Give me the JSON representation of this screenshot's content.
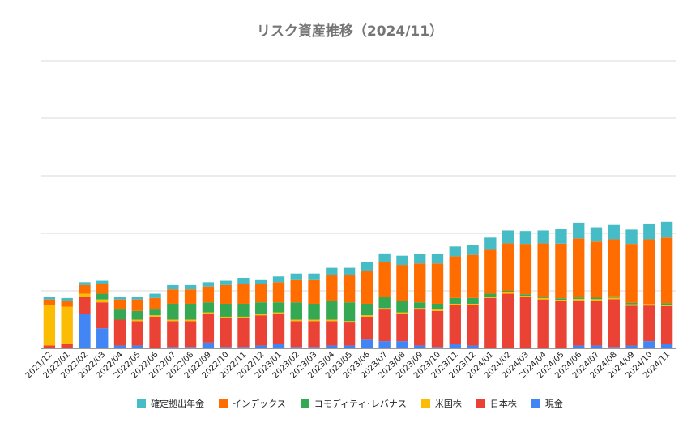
{
  "chart_data": {
    "type": "bar",
    "stacked": true,
    "title": "リスク資産推移（2024/11）",
    "xlabel": "",
    "ylabel": "",
    "y_tick_labels_shown": false,
    "ylim": [
      0,
      10
    ],
    "grid": true,
    "legend_position": "bottom",
    "categories": [
      "2021/12",
      "2022/01",
      "2022/02",
      "2022/03",
      "2022/04",
      "2022/05",
      "2022/06",
      "2022/07",
      "2022/08",
      "2022/09",
      "2022/10",
      "2022/11",
      "2022/12",
      "2023/01",
      "2023/02",
      "2023/03",
      "2023/04",
      "2023/05",
      "2023/06",
      "2023/07",
      "2023/08",
      "2023/09",
      "2023/10",
      "2023/11",
      "2023/12",
      "2024/01",
      "2024/02",
      "2024/03",
      "2024/04",
      "2024/05",
      "2024/06",
      "2024/07",
      "2024/08",
      "2024/09",
      "2024/10",
      "2024/11"
    ],
    "series": [
      {
        "name": "現金",
        "color": "#4285f4",
        "values": [
          0,
          0,
          1.2,
          0.7,
          0.1,
          0.1,
          0,
          0.05,
          0.05,
          0.2,
          0.05,
          0.05,
          0.1,
          0.15,
          0.05,
          0.05,
          0.1,
          0.1,
          0.3,
          0.25,
          0.25,
          0.1,
          0.05,
          0.15,
          0.1,
          0,
          0,
          0,
          0,
          0,
          0.1,
          0.1,
          0.05,
          0.1,
          0.25,
          0.15
        ]
      },
      {
        "name": "日本株",
        "color": "#ea4335",
        "values": [
          0.1,
          0.15,
          0.6,
          0.9,
          0.9,
          0.85,
          1.1,
          0.9,
          0.9,
          1,
          1,
          1,
          1.05,
          1.05,
          0.9,
          0.9,
          0.85,
          0.8,
          0.8,
          1.1,
          0.95,
          1.25,
          1.25,
          1.35,
          1.4,
          1.75,
          1.9,
          1.78,
          1.7,
          1.64,
          1.57,
          1.56,
          1.66,
          1.38,
          1.24,
          1.32
        ]
      },
      {
        "name": "米国株",
        "color": "#fbbc04",
        "values": [
          1.4,
          1.3,
          0.1,
          0.1,
          0,
          0.05,
          0.05,
          0.05,
          0.05,
          0.05,
          0.05,
          0.05,
          0.05,
          0.05,
          0.05,
          0.05,
          0.05,
          0.05,
          0.05,
          0.05,
          0.05,
          0.05,
          0.05,
          0.05,
          0.05,
          0.05,
          0.05,
          0.05,
          0.05,
          0.05,
          0.05,
          0.05,
          0.05,
          0.05,
          0.05,
          0.05
        ]
      },
      {
        "name": "コモディティ･レバナス",
        "color": "#34a853",
        "values": [
          0,
          0,
          0,
          0.2,
          0.35,
          0.3,
          0.2,
          0.55,
          0.55,
          0.35,
          0.45,
          0.45,
          0.4,
          0.35,
          0.6,
          0.55,
          0.65,
          0.65,
          0.4,
          0.4,
          0.4,
          0.2,
          0.2,
          0.2,
          0.2,
          0.1,
          0.05,
          0.05,
          0.05,
          0.05,
          0.05,
          0.05,
          0.05,
          0.05,
          0,
          0.05
        ]
      },
      {
        "name": "インデックス",
        "color": "#ff6d01",
        "values": [
          0.2,
          0.2,
          0.3,
          0.35,
          0.35,
          0.4,
          0.4,
          0.5,
          0.5,
          0.55,
          0.65,
          0.7,
          0.65,
          0.7,
          0.8,
          0.85,
          0.9,
          0.95,
          1.15,
          1.2,
          1.25,
          1.35,
          1.4,
          1.45,
          1.5,
          1.55,
          1.65,
          1.75,
          1.85,
          1.9,
          2.05,
          1.95,
          1.98,
          2.05,
          2.25,
          2.28
        ]
      },
      {
        "name": "確定拠出年金",
        "color": "#46bdc6",
        "values": [
          0.1,
          0.1,
          0.1,
          0.1,
          0.1,
          0.1,
          0.15,
          0.15,
          0.15,
          0.15,
          0.15,
          0.2,
          0.15,
          0.2,
          0.2,
          0.2,
          0.25,
          0.25,
          0.3,
          0.3,
          0.32,
          0.32,
          0.32,
          0.34,
          0.35,
          0.4,
          0.45,
          0.45,
          0.45,
          0.5,
          0.55,
          0.5,
          0.5,
          0.5,
          0.55,
          0.55
        ]
      }
    ],
    "legend_order": [
      "確定拠出年金",
      "インデックス",
      "コモディティ･レバナス",
      "米国株",
      "日本株",
      "現金"
    ]
  }
}
